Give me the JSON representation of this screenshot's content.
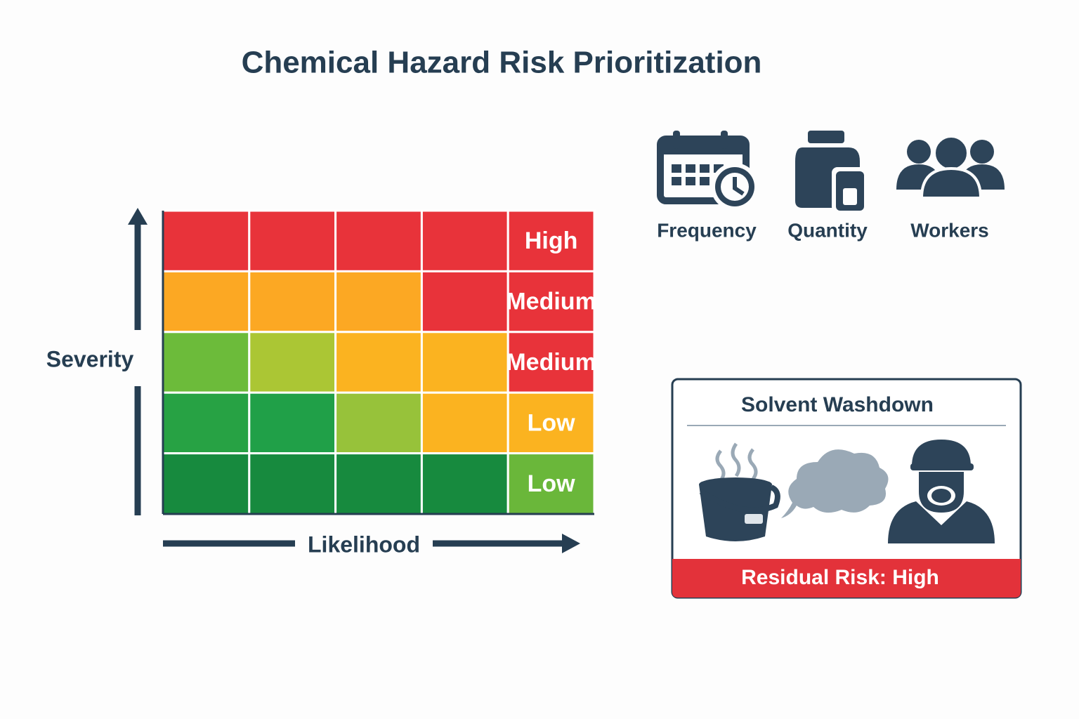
{
  "title": "Chemical Hazard Risk Prioritization",
  "matrix": {
    "y_axis_label": "Severity",
    "x_axis_label": "Likelihood",
    "rows": [
      {
        "cells": [
          "#e8333a",
          "#e8333a",
          "#e8333a",
          "#e8333a",
          "#e8333a"
        ],
        "label": "High"
      },
      {
        "cells": [
          "#fca823",
          "#fca823",
          "#fca823",
          "#e8333a",
          "#e8333a"
        ],
        "label": "Medium"
      },
      {
        "cells": [
          "#6cbb3a",
          "#abc634",
          "#fbb320",
          "#fbb320",
          "#e8333a"
        ],
        "label": "Medium"
      },
      {
        "cells": [
          "#27a244",
          "#20a048",
          "#97c23a",
          "#fbb320",
          "#fbb320"
        ],
        "label": "Low"
      },
      {
        "cells": [
          "#178a3e",
          "#178a3e",
          "#178a3e",
          "#178a3e",
          "#6ab73a"
        ],
        "label": "Low"
      }
    ]
  },
  "factors": [
    "Frequency",
    "Quantity",
    "Workers"
  ],
  "card": {
    "title": "Solvent Washdown",
    "footer": "Residual Risk: High"
  }
}
